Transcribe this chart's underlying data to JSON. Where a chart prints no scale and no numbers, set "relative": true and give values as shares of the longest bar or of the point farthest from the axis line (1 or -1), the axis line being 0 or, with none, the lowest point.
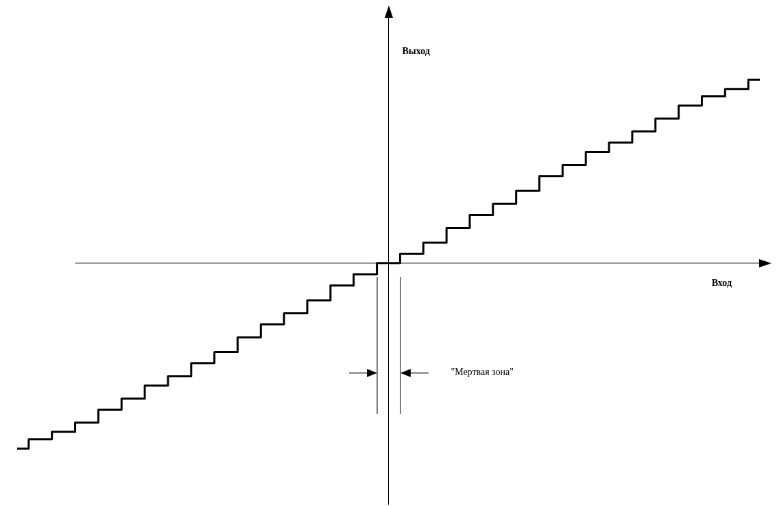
{
  "chart_data": {
    "type": "step",
    "relative": true,
    "xlabel": "Вход",
    "ylabel": "Выход",
    "color": "#000000",
    "line_style": "solid",
    "marker": "none",
    "categories": [
      null,
      null,
      null,
      null,
      null,
      null,
      null,
      null,
      null,
      null,
      null,
      null,
      null,
      null,
      null,
      null,
      null,
      null,
      null,
      null,
      null,
      null,
      null,
      null,
      null,
      null,
      null,
      null,
      null,
      null,
      null,
      null,
      null
    ],
    "values": [
      -1,
      -0.95,
      -0.91,
      -0.86,
      -0.79,
      -0.73,
      -0.66,
      -0.61,
      -0.54,
      -0.48,
      -0.4,
      -0.33,
      -0.27,
      -0.2,
      -0.12,
      -0.06,
      0,
      0.05,
      0.11,
      0.19,
      0.26,
      0.32,
      0.39,
      0.47,
      0.53,
      0.6,
      0.65,
      0.71,
      0.78,
      0.85,
      0.9,
      0.94,
      0.99
    ],
    "annotations": [
      "\"Мертвая зона\""
    ]
  }
}
